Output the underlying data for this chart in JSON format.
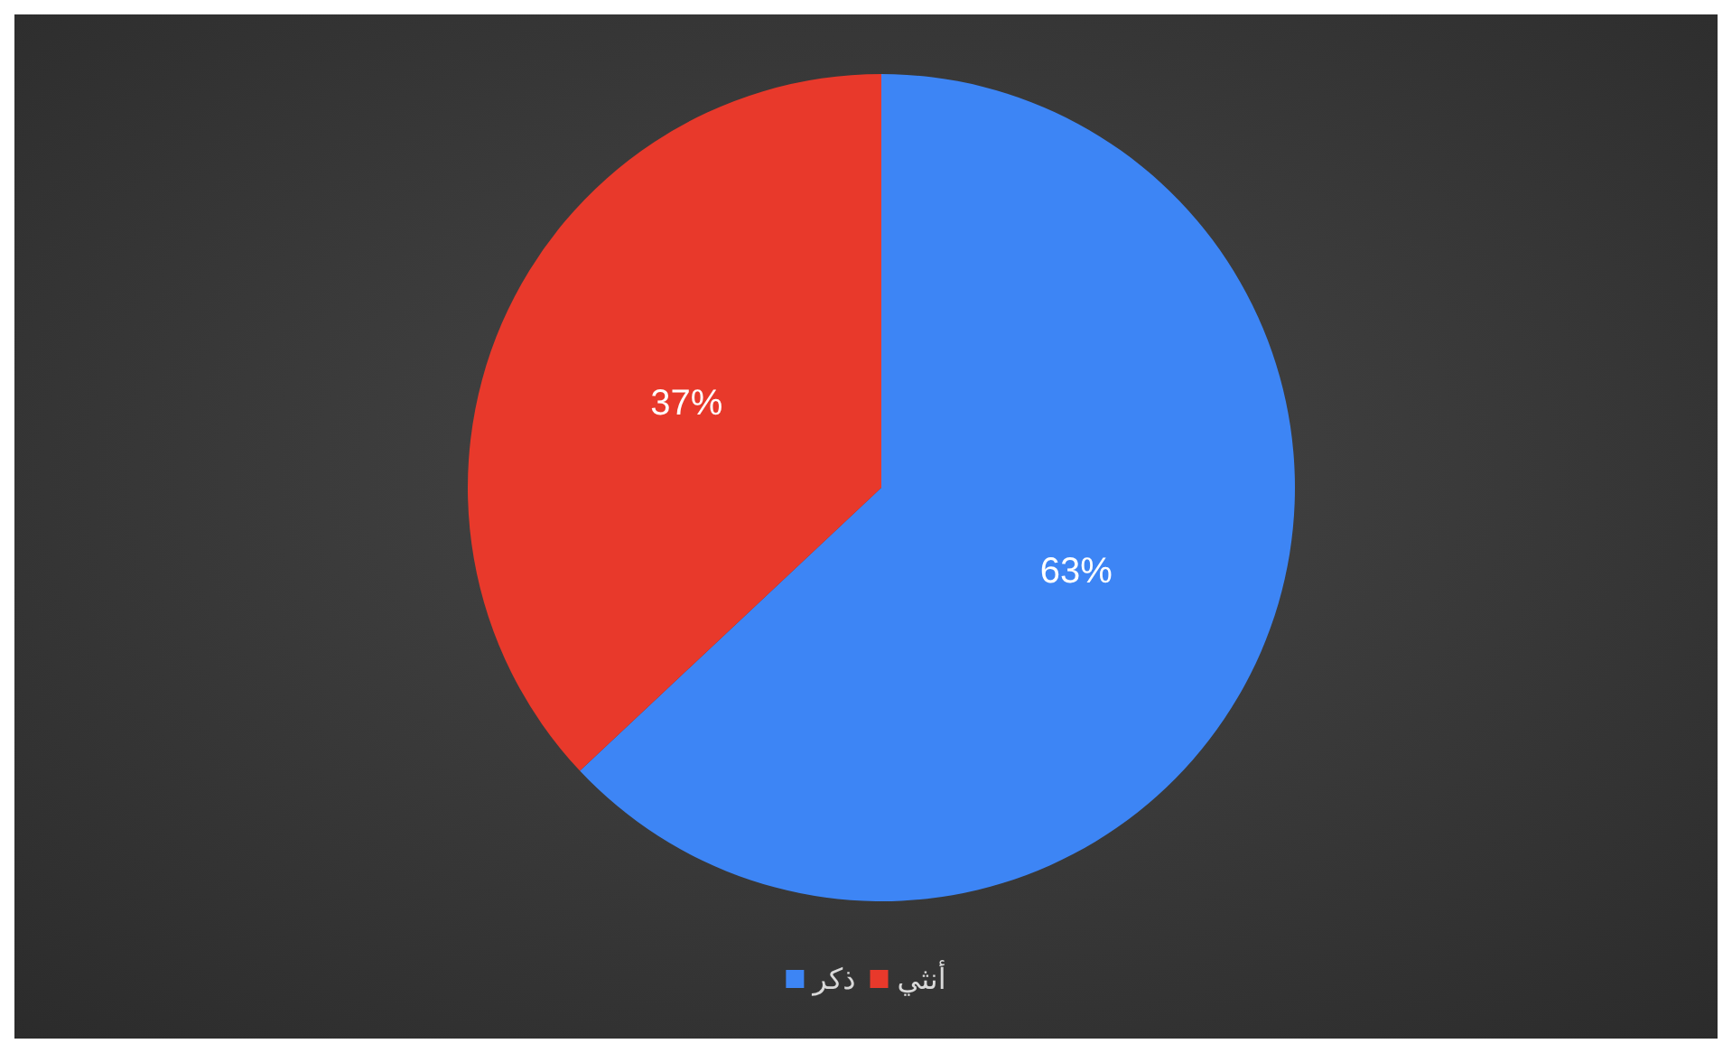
{
  "chart_data": {
    "type": "pie",
    "categories": [
      "ذكر",
      "أنثي"
    ],
    "values": [
      63,
      37
    ],
    "colors": [
      "#3d85f5",
      "#e8392b"
    ],
    "value_labels": [
      "63%",
      "37%"
    ],
    "legend": "bottom"
  }
}
